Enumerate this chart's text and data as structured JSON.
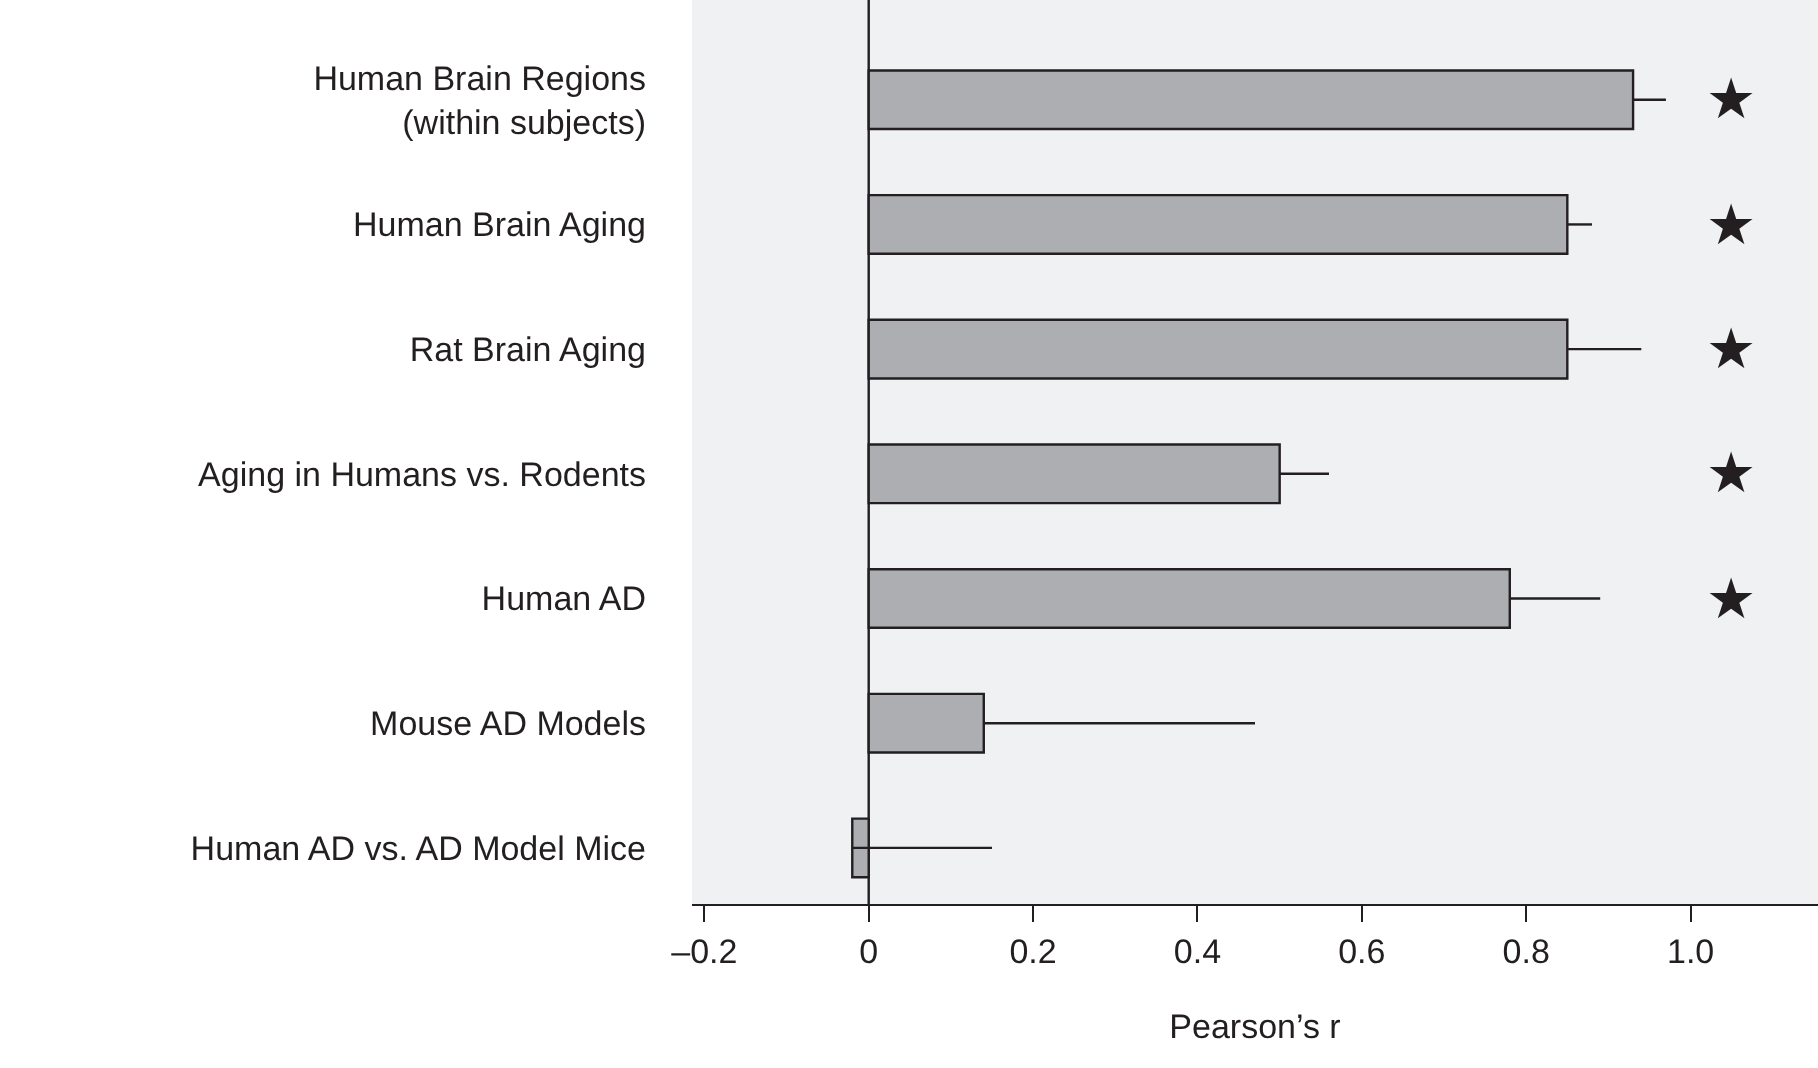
{
  "chart_data": {
    "type": "bar",
    "orientation": "horizontal",
    "xlabel": "Pearson’s r",
    "categories": [
      "Human Brain Regions\n(within subjects)",
      "Human Brain Aging",
      "Rat Brain Aging",
      "Aging in Humans vs. Rodents",
      "Human AD",
      "Mouse AD Models",
      "Human AD vs. AD Model Mice"
    ],
    "values": [
      0.93,
      0.85,
      0.85,
      0.5,
      0.78,
      0.14,
      -0.02
    ],
    "errors": [
      [
        0.93,
        0.97
      ],
      [
        0.85,
        0.88
      ],
      [
        0.85,
        0.94
      ],
      [
        0.5,
        0.56
      ],
      [
        0.78,
        0.89
      ],
      [
        0.14,
        0.47
      ],
      [
        -0.02,
        0.15
      ]
    ],
    "color": "#adaeb1",
    "xlim": [
      -0.215,
      1.155
    ],
    "xticks": [
      {
        "value": -0.2,
        "label": "–0.2"
      },
      0,
      0.2,
      0.4,
      0.6,
      0.8,
      {
        "value": 1.0,
        "label": "1.0"
      }
    ],
    "grid": false,
    "ref_lines": [
      {
        "axis": "x",
        "value": 0,
        "color": "#231f20"
      }
    ],
    "annotations": [
      "★",
      "★",
      "★",
      "★",
      "★"
    ]
  }
}
